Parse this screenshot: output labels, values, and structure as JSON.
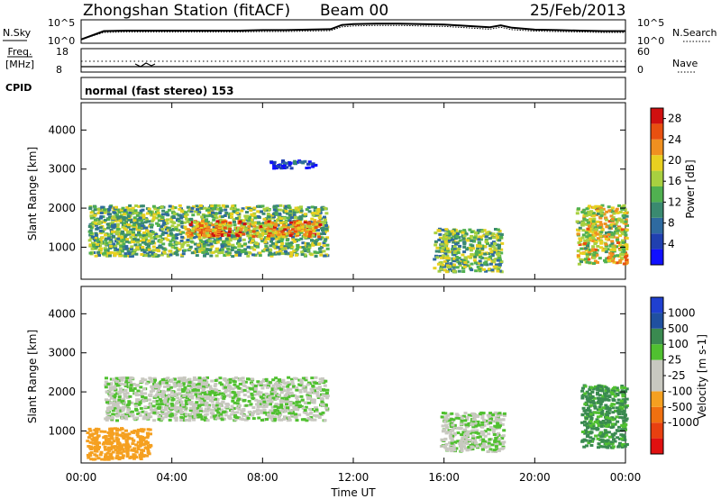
{
  "header": {
    "station_title": "Zhongshan Station (fitACF)",
    "beam": "Beam 00",
    "date": "25/Feb/2013"
  },
  "summary_panels": {
    "nsky_label": "N.Sky",
    "nsky_ticks": [
      "10^5",
      "10^0"
    ],
    "nsearch_label": "N.Search",
    "nsearch_ticks": [
      "10^5",
      "10^0"
    ],
    "freq_label_1": "Freq.",
    "freq_label_2": "[MHz]",
    "freq_ticks": [
      "18",
      "8"
    ],
    "nave_label": "Nave",
    "nave_ticks": [
      "60",
      "0"
    ],
    "cpid_label": "CPID",
    "cpid_text": "normal (fast stereo) 153"
  },
  "colors": {
    "power_scale": [
      "#1010ff",
      "#2040b0",
      "#2e6aa0",
      "#3a8a70",
      "#50b050",
      "#a8d040",
      "#e8d020",
      "#f09020",
      "#e85010",
      "#d01010"
    ],
    "velocity_scale": [
      "#e01010",
      "#e84010",
      "#f07010",
      "#f5a020",
      "#c8c8c0",
      "#c8c8c0",
      "#50c030",
      "#3a8a50",
      "#2050a0",
      "#2040d0"
    ]
  },
  "chart_data": [
    {
      "type": "line",
      "panel": "N.Sky / N.Search",
      "x": [
        0,
        1,
        2,
        3,
        4,
        5,
        6,
        7,
        8,
        9,
        10,
        11,
        11.5,
        12,
        13,
        14,
        15,
        16,
        17,
        18,
        18.5,
        19,
        20,
        21,
        22,
        23,
        24
      ],
      "series": [
        {
          "name": "N.Sky",
          "values": [
            0.8,
            2.6,
            2.7,
            2.7,
            2.7,
            2.7,
            2.7,
            2.7,
            2.8,
            2.8,
            2.9,
            3.0,
            3.9,
            4.1,
            4.2,
            4.2,
            4.1,
            4.0,
            3.7,
            3.4,
            3.8,
            3.3,
            2.9,
            2.8,
            2.7,
            2.6,
            2.6
          ]
        },
        {
          "name": "N.Search",
          "values": [
            0.8,
            2.3,
            2.4,
            2.4,
            2.4,
            2.4,
            2.4,
            2.4,
            2.5,
            2.5,
            2.6,
            2.7,
            3.5,
            3.7,
            3.8,
            3.8,
            3.7,
            3.6,
            3.3,
            3.0,
            3.4,
            2.9,
            2.6,
            2.5,
            2.4,
            2.3,
            2.3
          ]
        }
      ],
      "ylim": [
        0,
        5
      ],
      "yscale": "log"
    },
    {
      "type": "line",
      "panel": "Freq. / Nave",
      "x": [
        0,
        4,
        8,
        12,
        16,
        20,
        24
      ],
      "series": [
        {
          "name": "Freq.",
          "values": [
            10.0,
            10.0,
            10.0,
            10.0,
            10.0,
            10.0,
            10.0
          ]
        },
        {
          "name": "Nave",
          "values": [
            25,
            25,
            25,
            25,
            25,
            25,
            25
          ]
        }
      ],
      "ylim": [
        8,
        18
      ]
    },
    {
      "type": "heatmap",
      "title": "",
      "xlabel": "Time UT",
      "ylabel": "Slant Range [km]",
      "xticks": [
        "00:00",
        "04:00",
        "08:00",
        "12:00",
        "16:00",
        "20:00",
        "00:00"
      ],
      "xlim": [
        0,
        24
      ],
      "yticks": [
        1000,
        2000,
        3000,
        4000
      ],
      "ylim": [
        180,
        4700
      ],
      "colorbar_label": "Power [dB]",
      "colorbar_ticks": [
        4,
        8,
        12,
        16,
        20,
        24,
        28
      ],
      "clim": [
        0,
        30
      ],
      "echo_regions": [
        {
          "t0": 0.3,
          "t1": 10.8,
          "r0": 800,
          "r1": 2100,
          "power": 14
        },
        {
          "t0": 4.5,
          "t1": 10.5,
          "r0": 1300,
          "r1": 1700,
          "power": 22
        },
        {
          "t0": 8.3,
          "t1": 10.3,
          "r0": 3050,
          "r1": 3250,
          "power": 4
        },
        {
          "t0": 15.5,
          "t1": 18.5,
          "r0": 400,
          "r1": 1500,
          "power": 14
        },
        {
          "t0": 21.8,
          "t1": 24,
          "r0": 600,
          "r1": 2100,
          "power": 18
        }
      ]
    },
    {
      "type": "heatmap",
      "title": "",
      "xlabel": "Time UT",
      "ylabel": "Slant Range [km]",
      "xticks": [
        "00:00",
        "04:00",
        "08:00",
        "12:00",
        "16:00",
        "20:00",
        "00:00"
      ],
      "xlim": [
        0,
        24
      ],
      "yticks": [
        1000,
        2000,
        3000,
        4000
      ],
      "ylim": [
        180,
        4700
      ],
      "colorbar_label": "Velocity [m s-1]",
      "colorbar_ticks": [
        "1000",
        "500",
        "100",
        "25",
        "-25",
        "-100",
        "-500",
        "-1000"
      ],
      "echo_regions": [
        {
          "t0": 1.0,
          "t1": 10.8,
          "r0": 1300,
          "r1": 2400,
          "velocity": 0
        },
        {
          "t0": 0.2,
          "t1": 3.0,
          "r0": 300,
          "r1": 1100,
          "velocity": -300
        },
        {
          "t0": 15.8,
          "t1": 18.6,
          "r0": 500,
          "r1": 1500,
          "velocity": 0
        },
        {
          "t0": 22.0,
          "t1": 24,
          "r0": 600,
          "r1": 2200,
          "velocity": 150
        }
      ]
    }
  ]
}
